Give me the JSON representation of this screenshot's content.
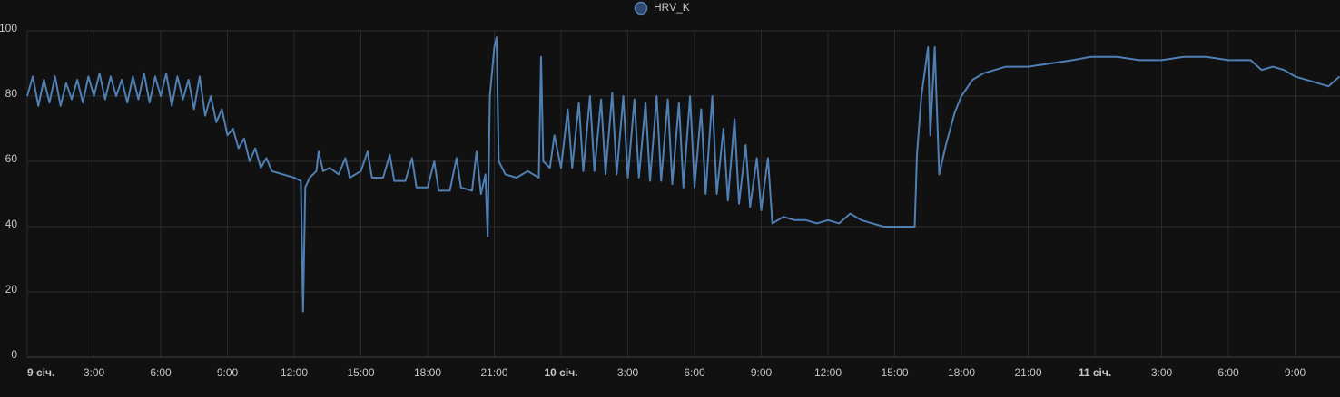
{
  "chart_data": {
    "type": "line",
    "series": [
      {
        "name": "HRV_K",
        "color": "#4f7fb3",
        "x": [
          0,
          0.25,
          0.5,
          0.75,
          1,
          1.25,
          1.5,
          1.75,
          2,
          2.25,
          2.5,
          2.75,
          3,
          3.25,
          3.5,
          3.75,
          4,
          4.25,
          4.5,
          4.75,
          5,
          5.25,
          5.5,
          5.75,
          6,
          6.25,
          6.5,
          6.75,
          7,
          7.25,
          7.5,
          7.75,
          8,
          8.25,
          8.5,
          8.75,
          9,
          9.25,
          9.5,
          9.75,
          10,
          10.25,
          10.5,
          10.75,
          11,
          11.5,
          12,
          12.3,
          12.4,
          12.5,
          12.7,
          13,
          13.1,
          13.3,
          13.6,
          14,
          14.3,
          14.5,
          15,
          15.3,
          15.5,
          16,
          16.3,
          16.5,
          17,
          17.3,
          17.5,
          18,
          18.3,
          18.5,
          19,
          19.3,
          19.5,
          20,
          20.2,
          20.4,
          20.6,
          20.7,
          20.8,
          21,
          21.1,
          21.2,
          21.5,
          22,
          22.5,
          23,
          23.1,
          23.2,
          23.5,
          23.7,
          24,
          24.3,
          24.5,
          24.8,
          25,
          25.3,
          25.5,
          25.8,
          26,
          26.3,
          26.5,
          26.8,
          27,
          27.3,
          27.5,
          27.8,
          28,
          28.3,
          28.5,
          28.8,
          29,
          29.3,
          29.5,
          29.8,
          30,
          30.3,
          30.5,
          30.8,
          31,
          31.3,
          31.5,
          31.8,
          32,
          32.3,
          32.5,
          32.8,
          33,
          33.3,
          33.5,
          34,
          34.5,
          35,
          35.5,
          36,
          36.5,
          37,
          37.5,
          38,
          38.5,
          39,
          39.5,
          39.9,
          40,
          40.2,
          40.5,
          40.6,
          40.8,
          41,
          41.3,
          41.7,
          42,
          42.5,
          43,
          43.5,
          44,
          45,
          46,
          47,
          47.8,
          49,
          50,
          51,
          52,
          53,
          54,
          55,
          55.5,
          56,
          56.5,
          57,
          58,
          58.5,
          59
        ],
        "values": [
          80,
          86,
          77,
          85,
          78,
          86,
          77,
          84,
          79,
          85,
          78,
          86,
          80,
          87,
          79,
          86,
          80,
          85,
          78,
          86,
          79,
          87,
          78,
          86,
          80,
          87,
          77,
          86,
          79,
          85,
          76,
          86,
          74,
          80,
          72,
          76,
          68,
          70,
          64,
          67,
          60,
          64,
          58,
          61,
          57,
          56,
          55,
          54,
          14,
          52,
          55,
          57,
          63,
          57,
          58,
          56,
          61,
          55,
          57,
          63,
          55,
          55,
          62,
          54,
          54,
          61,
          52,
          52,
          60,
          51,
          51,
          61,
          52,
          51,
          63,
          50,
          56,
          37,
          80,
          95,
          98,
          60,
          56,
          55,
          57,
          55,
          92,
          60,
          58,
          68,
          58,
          76,
          58,
          78,
          57,
          80,
          57,
          79,
          56,
          81,
          56,
          80,
          55,
          79,
          55,
          78,
          54,
          80,
          54,
          79,
          53,
          78,
          52,
          80,
          52,
          76,
          50,
          80,
          50,
          70,
          48,
          73,
          47,
          65,
          46,
          61,
          45,
          61,
          41,
          43,
          42,
          42,
          41,
          42,
          41,
          44,
          42,
          41,
          40,
          40,
          40,
          40,
          62,
          80,
          95,
          68,
          95,
          56,
          65,
          75,
          80,
          85,
          87,
          88,
          89,
          89,
          90,
          91,
          92,
          92,
          91,
          91,
          92,
          92,
          91,
          91,
          88,
          89,
          88,
          86,
          84,
          83,
          86
        ]
      }
    ],
    "xlim": [
      0,
      59.02
    ],
    "xticks": [
      {
        "value": 0,
        "label": "9 січ."
      },
      {
        "value": 3,
        "label": "3:00"
      },
      {
        "value": 6,
        "label": "6:00"
      },
      {
        "value": 9,
        "label": "9:00"
      },
      {
        "value": 12,
        "label": "12:00"
      },
      {
        "value": 15,
        "label": "15:00"
      },
      {
        "value": 18,
        "label": "18:00"
      },
      {
        "value": 21,
        "label": "21:00"
      },
      {
        "value": 24,
        "label": "10 січ."
      },
      {
        "value": 27,
        "label": "3:00"
      },
      {
        "value": 30,
        "label": "6:00"
      },
      {
        "value": 33,
        "label": "9:00"
      },
      {
        "value": 36,
        "label": "12:00"
      },
      {
        "value": 39,
        "label": "15:00"
      },
      {
        "value": 42,
        "label": "18:00"
      },
      {
        "value": 45,
        "label": "21:00"
      },
      {
        "value": 48,
        "label": "11 січ."
      },
      {
        "value": 51,
        "label": "3:00"
      },
      {
        "value": 54,
        "label": "6:00"
      },
      {
        "value": 57,
        "label": "9:00"
      }
    ],
    "ylim": [
      0,
      100
    ],
    "yticks": [
      0,
      20,
      40,
      60,
      80,
      100
    ],
    "grid": true
  }
}
